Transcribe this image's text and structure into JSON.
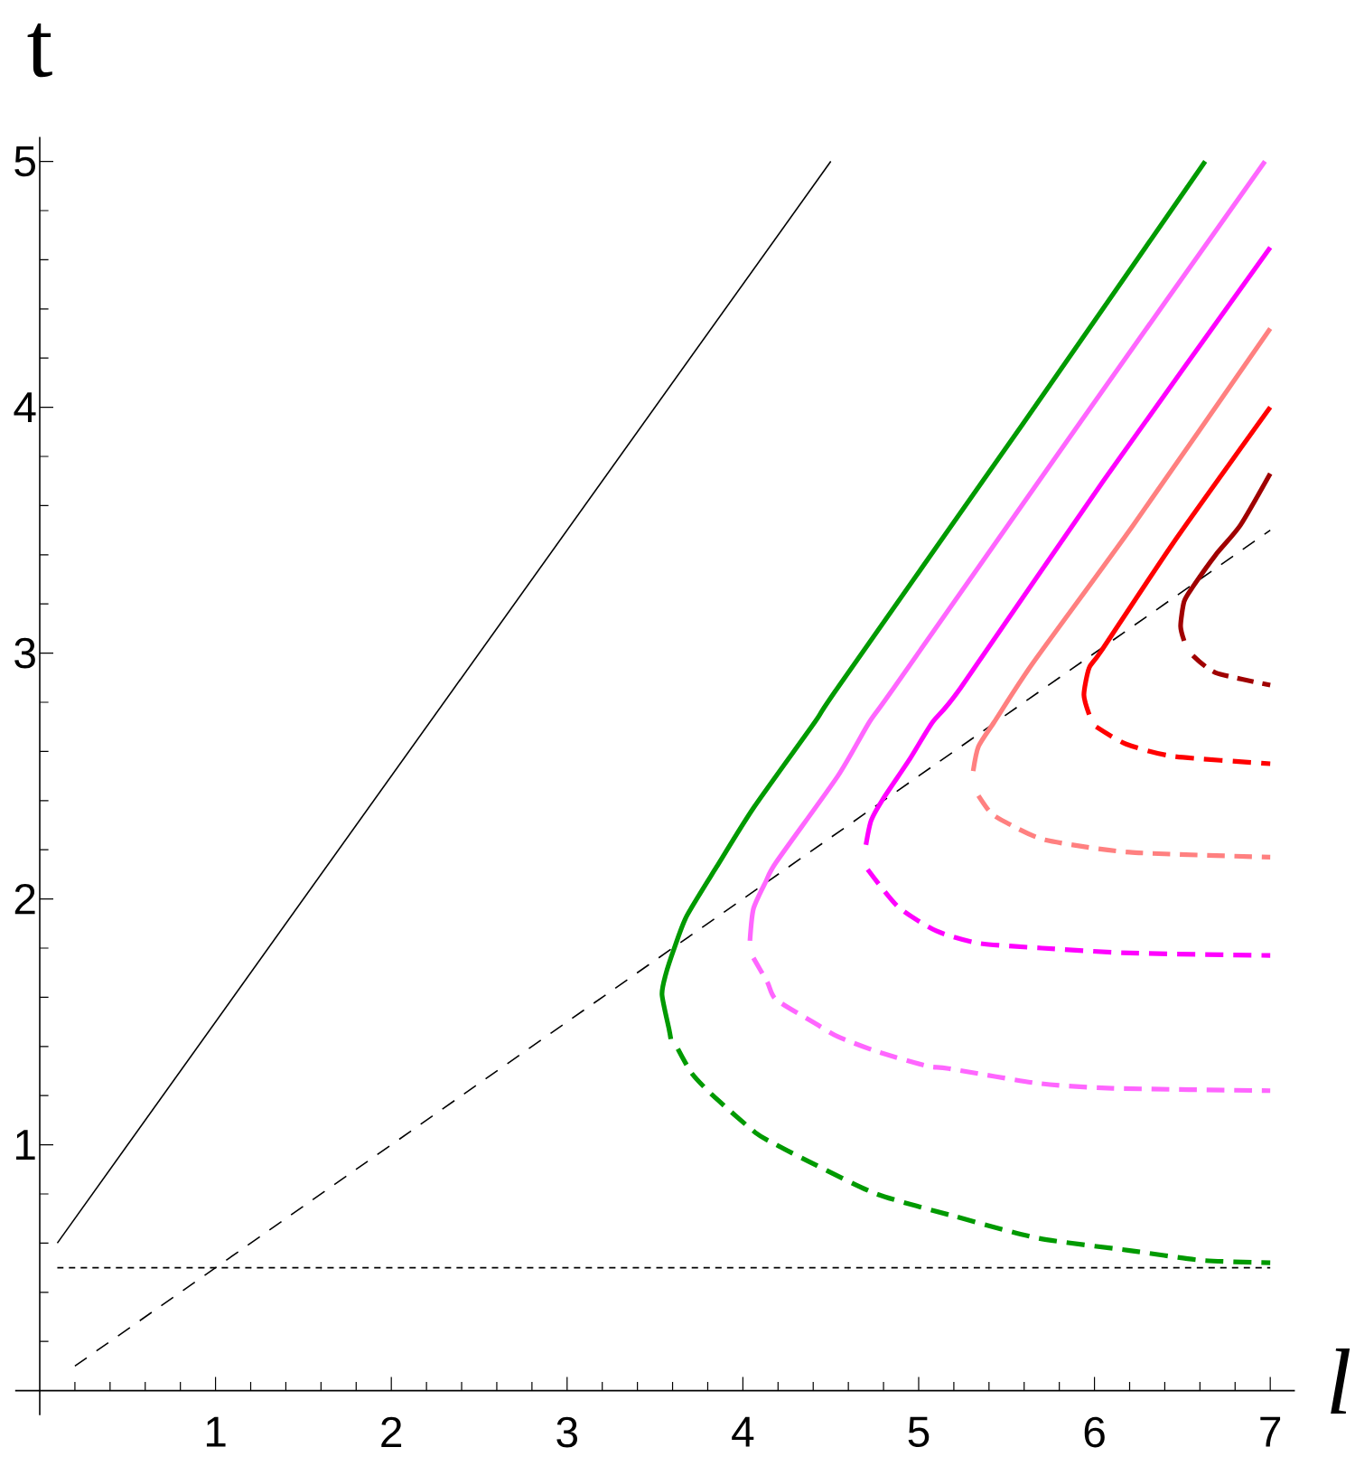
{
  "chart_data": {
    "type": "line",
    "xlabel": "l",
    "ylabel": "t",
    "xlim": [
      0,
      7.14
    ],
    "ylim": [
      0,
      5.1
    ],
    "xticks": [
      {
        "value": 0.2,
        "label": null
      },
      {
        "value": 0.4,
        "label": null
      },
      {
        "value": 0.6,
        "label": null
      },
      {
        "value": 0.8,
        "label": null
      },
      1,
      {
        "value": 1.2,
        "label": null
      },
      {
        "value": 1.4,
        "label": null
      },
      {
        "value": 1.6,
        "label": null
      },
      {
        "value": 1.8,
        "label": null
      },
      2,
      {
        "value": 2.2,
        "label": null
      },
      {
        "value": 2.4,
        "label": null
      },
      {
        "value": 2.6,
        "label": null
      },
      {
        "value": 2.8,
        "label": null
      },
      3,
      {
        "value": 3.2,
        "label": null
      },
      {
        "value": 3.4,
        "label": null
      },
      {
        "value": 3.6,
        "label": null
      },
      {
        "value": 3.8,
        "label": null
      },
      4,
      {
        "value": 4.2,
        "label": null
      },
      {
        "value": 4.4,
        "label": null
      },
      {
        "value": 4.6,
        "label": null
      },
      {
        "value": 4.8,
        "label": null
      },
      5,
      {
        "value": 5.2,
        "label": null
      },
      {
        "value": 5.4,
        "label": null
      },
      {
        "value": 5.6,
        "label": null
      },
      {
        "value": 5.8,
        "label": null
      },
      6,
      {
        "value": 6.2,
        "label": null
      },
      {
        "value": 6.4,
        "label": null
      },
      {
        "value": 6.6,
        "label": null
      },
      {
        "value": 6.8,
        "label": null
      },
      7
    ],
    "yticks": [
      {
        "value": 0.2,
        "label": null
      },
      {
        "value": 0.4,
        "label": null
      },
      {
        "value": 0.6,
        "label": null
      },
      {
        "value": 0.8,
        "label": null
      },
      1,
      {
        "value": 1.2,
        "label": null
      },
      {
        "value": 1.4,
        "label": null
      },
      {
        "value": 1.6,
        "label": null
      },
      {
        "value": 1.8,
        "label": null
      },
      2,
      {
        "value": 2.2,
        "label": null
      },
      {
        "value": 2.4,
        "label": null
      },
      {
        "value": 2.6,
        "label": null
      },
      {
        "value": 2.8,
        "label": null
      },
      3,
      {
        "value": 3.2,
        "label": null
      },
      {
        "value": 3.4,
        "label": null
      },
      {
        "value": 3.6,
        "label": null
      },
      {
        "value": 3.8,
        "label": null
      },
      4,
      {
        "value": 4.2,
        "label": null
      },
      {
        "value": 4.4,
        "label": null
      },
      {
        "value": 4.6,
        "label": null
      },
      {
        "value": 4.8,
        "label": null
      },
      5
    ],
    "series": [
      {
        "color": "#000000",
        "line_style": "solid",
        "x": [
          0.1,
          4.5
        ],
        "values": [
          0.6,
          5.0
        ]
      },
      {
        "color": "#000000",
        "line_style": "dashed",
        "x": [
          0.2,
          7.0
        ],
        "values": [
          0.1,
          3.5
        ]
      },
      {
        "color": "#000000",
        "line_style": "dotted",
        "x": [
          0.1,
          7.0
        ],
        "values": [
          0.5,
          0.5
        ]
      },
      {
        "color": "#009a00",
        "line_style": "solid",
        "x": [
          6.63,
          5.6,
          4.54,
          4.41,
          4.06,
          3.85,
          3.68,
          3.61,
          3.56,
          3.54,
          3.58,
          3.59
        ],
        "values": [
          5.0,
          3.94,
          2.86,
          2.72,
          2.37,
          2.13,
          1.93,
          1.8,
          1.69,
          1.61,
          1.47,
          1.43
        ]
      },
      {
        "color": "#009a00",
        "line_style": "dashed",
        "x": [
          3.63,
          3.71,
          3.83,
          4.07,
          4.19,
          4.38,
          4.76,
          5.2,
          5.68,
          6.2,
          6.61,
          7.0
        ],
        "values": [
          1.39,
          1.29,
          1.2,
          1.05,
          1.0,
          0.93,
          0.8,
          0.71,
          0.62,
          0.57,
          0.53,
          0.52
        ]
      },
      {
        "color": "#ff66ff",
        "line_style": "solid",
        "x": [
          6.97,
          5.92,
          4.86,
          4.72,
          4.54,
          4.19,
          4.13,
          4.06,
          4.04
        ],
        "values": [
          5.0,
          3.94,
          2.86,
          2.72,
          2.5,
          2.15,
          2.07,
          1.96,
          1.83
        ]
      },
      {
        "color": "#ff66ff",
        "line_style": "dashed",
        "x": [
          4.06,
          4.14,
          4.19,
          4.42,
          4.54,
          4.76,
          5.05,
          5.17,
          5.68,
          6.1,
          7.0
        ],
        "values": [
          1.76,
          1.66,
          1.59,
          1.49,
          1.44,
          1.38,
          1.32,
          1.31,
          1.25,
          1.23,
          1.22
        ]
      },
      {
        "color": "#ff00ff",
        "line_style": "solid",
        "x": [
          7.0,
          6.05,
          5.24,
          5.08,
          4.95,
          4.8,
          4.73,
          4.7
        ],
        "values": [
          4.65,
          3.7,
          2.86,
          2.72,
          2.57,
          2.41,
          2.32,
          2.22
        ]
      },
      {
        "color": "#ff00ff",
        "line_style": "dashed",
        "x": [
          4.71,
          4.88,
          5.1,
          5.34,
          5.7,
          6.2,
          7.0
        ],
        "values": [
          2.12,
          1.97,
          1.87,
          1.82,
          1.8,
          1.78,
          1.77
        ]
      },
      {
        "color": "#ff8080",
        "line_style": "solid",
        "x": [
          7.0,
          6.22,
          5.65,
          5.43,
          5.34,
          5.31
        ],
        "values": [
          4.32,
          3.52,
          2.96,
          2.72,
          2.62,
          2.52
        ]
      },
      {
        "color": "#ff8080",
        "line_style": "dashed",
        "x": [
          5.34,
          5.41,
          5.5,
          5.72,
          6.2,
          7.0
        ],
        "values": [
          2.42,
          2.35,
          2.31,
          2.24,
          2.19,
          2.17
        ]
      },
      {
        "color": "#ff0000",
        "line_style": "solid",
        "x": [
          7.0,
          6.45,
          6.04,
          5.97,
          5.94,
          5.97
        ],
        "values": [
          4.0,
          3.45,
          3.01,
          2.94,
          2.83,
          2.75
        ]
      },
      {
        "color": "#ff0000",
        "line_style": "dashed",
        "x": [
          6.01,
          6.18,
          6.45,
          7.0
        ],
        "values": [
          2.7,
          2.63,
          2.58,
          2.55
        ]
      },
      {
        "color": "#a00000",
        "line_style": "solid",
        "x": [
          7.0,
          6.83,
          6.69,
          6.56,
          6.51,
          6.49,
          6.51
        ],
        "values": [
          3.73,
          3.52,
          3.4,
          3.27,
          3.21,
          3.11,
          3.05
        ]
      },
      {
        "color": "#a00000",
        "line_style": "dashed",
        "x": [
          6.56,
          6.69,
          7.0
        ],
        "values": [
          2.99,
          2.92,
          2.87
        ]
      }
    ]
  }
}
